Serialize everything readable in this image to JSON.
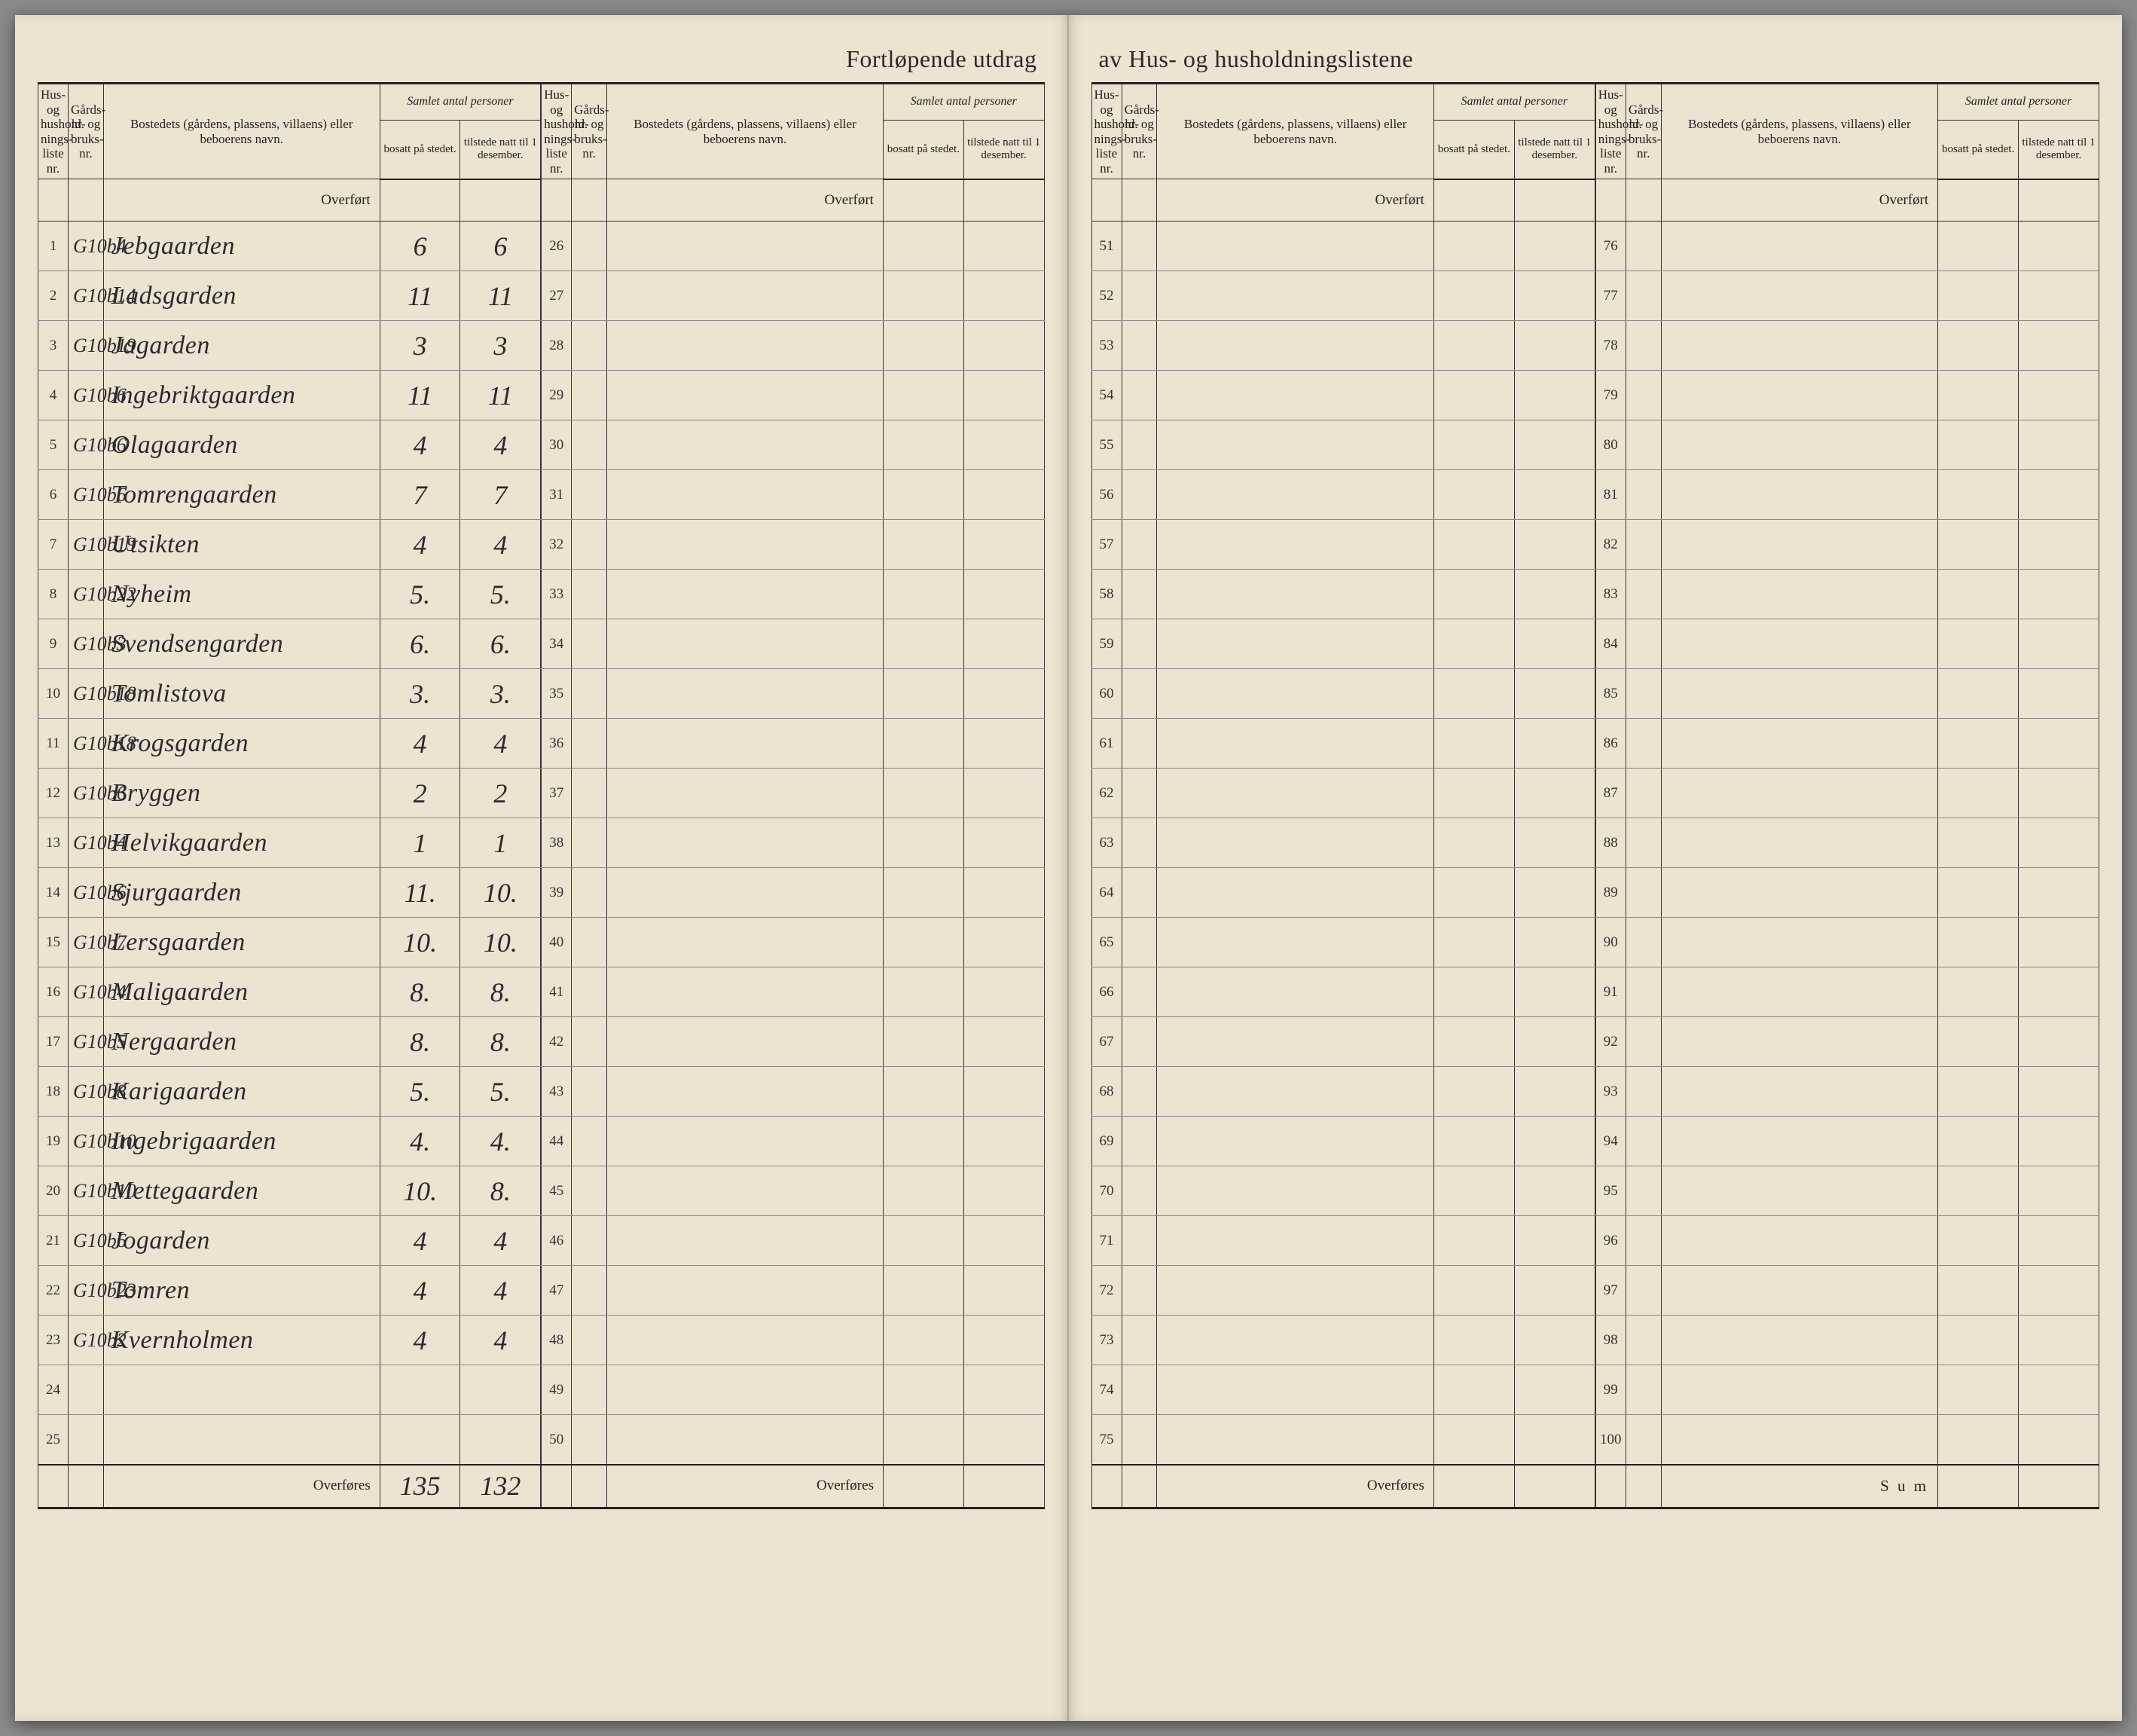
{
  "title_left": "Fortløpende utdrag",
  "title_right": "av Hus- og husholdningslistene",
  "headers": {
    "liste": "Hus- og hushold-nings-liste nr.",
    "gards": "Gårds-nr. og bruks-nr.",
    "bosted": "Bostedets (gårdens, plassens, villaens) eller beboerens navn.",
    "samlet": "Samlet antal personer",
    "bosatt": "bosatt på stedet.",
    "tilstede": "tilstede natt til 1 desember."
  },
  "labels": {
    "overfort": "Overført",
    "overfores": "Overføres",
    "sum": "S u m"
  },
  "entries": [
    {
      "n": "1",
      "g": "G10b4",
      "name": "Jebgaarden",
      "b": "6",
      "t": "6"
    },
    {
      "n": "2",
      "g": "G10b14",
      "name": "Ladsgarden",
      "b": "11",
      "t": "11"
    },
    {
      "n": "3",
      "g": "G10b19",
      "name": "Jagarden",
      "b": "3",
      "t": "3"
    },
    {
      "n": "4",
      "g": "G10b6",
      "name": "Ingebriktgaarden",
      "b": "11",
      "t": "11"
    },
    {
      "n": "5",
      "g": "G10b6",
      "name": "Olagaarden",
      "b": "4",
      "t": "4"
    },
    {
      "n": "6",
      "g": "G10b6",
      "name": "Tomrengaarden",
      "b": "7",
      "t": "7"
    },
    {
      "n": "7",
      "g": "G10b19",
      "name": "Utsikten",
      "b": "4",
      "t": "4"
    },
    {
      "n": "8",
      "g": "G10b22",
      "name": "Nyheim",
      "b": "5.",
      "t": "5."
    },
    {
      "n": "9",
      "g": "G10b3",
      "name": "Svendsengarden",
      "b": "6.",
      "t": "6."
    },
    {
      "n": "10",
      "g": "G10b18",
      "name": "Tomlistova",
      "b": "3.",
      "t": "3."
    },
    {
      "n": "11",
      "g": "G10b18",
      "name": "Krogsgarden",
      "b": "4",
      "t": "4"
    },
    {
      "n": "12",
      "g": "G10b6",
      "name": "Bryggen",
      "b": "2",
      "t": "2"
    },
    {
      "n": "13",
      "g": "G10b4",
      "name": "Helvikgaarden",
      "b": "1",
      "t": "1"
    },
    {
      "n": "14",
      "g": "G10b6",
      "name": "Sjurgaarden",
      "b": "11.",
      "t": "10."
    },
    {
      "n": "15",
      "g": "G10b7",
      "name": "Lersgaarden",
      "b": "10.",
      "t": "10."
    },
    {
      "n": "16",
      "g": "G10b4",
      "name": "Maligaarden",
      "b": "8.",
      "t": "8."
    },
    {
      "n": "17",
      "g": "G10b5",
      "name": "Nergaarden",
      "b": "8.",
      "t": "8."
    },
    {
      "n": "18",
      "g": "G10b8",
      "name": "Karigaarden",
      "b": "5.",
      "t": "5."
    },
    {
      "n": "19",
      "g": "G10b10",
      "name": "Ingebrigaarden",
      "b": "4.",
      "t": "4."
    },
    {
      "n": "20",
      "g": "G10b10",
      "name": "Mettegaarden",
      "b": "10.",
      "t": "8."
    },
    {
      "n": "21",
      "g": "G10b6",
      "name": "Jogarden",
      "b": "4",
      "t": "4"
    },
    {
      "n": "22",
      "g": "G10b23",
      "name": "Tomren",
      "b": "4",
      "t": "4"
    },
    {
      "n": "23",
      "g": "G10b2",
      "name": "Kvernholmen",
      "b": "4",
      "t": "4"
    },
    {
      "n": "24",
      "g": "",
      "name": "",
      "b": "",
      "t": ""
    },
    {
      "n": "25",
      "g": "",
      "name": "",
      "b": "",
      "t": ""
    }
  ],
  "totals": {
    "b": "135",
    "t": "132"
  },
  "ranges": {
    "col2": {
      "start": 26,
      "end": 50
    },
    "col3": {
      "start": 51,
      "end": 75
    },
    "col4": {
      "start": 76,
      "end": 100
    }
  }
}
